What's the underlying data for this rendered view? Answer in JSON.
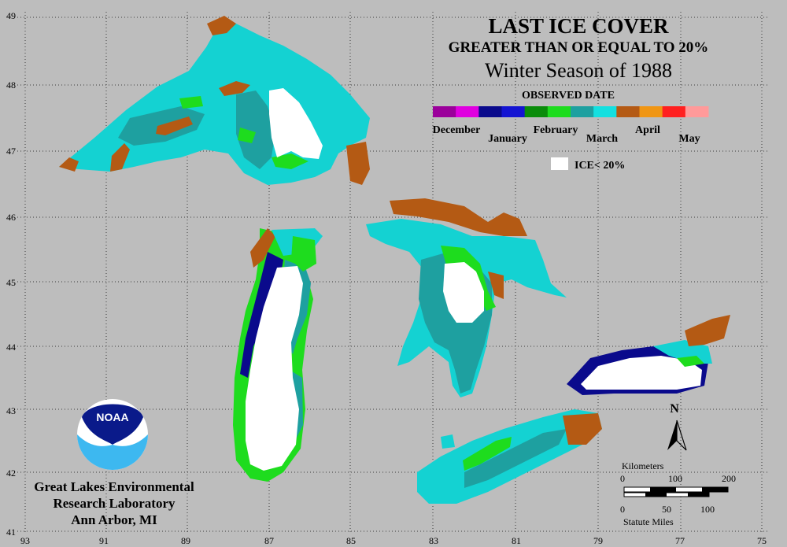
{
  "title": {
    "line1": "LAST ICE COVER",
    "line2": "GREATER THAN OR EQUAL TO 20%",
    "line3": "Winter Season of 1988"
  },
  "legend": {
    "title": "OBSERVED DATE",
    "months": [
      "December",
      "January",
      "February",
      "March",
      "April",
      "May"
    ],
    "swatch_colors": [
      "#9b009b",
      "#e000e0",
      "#0a0a8c",
      "#1414d2",
      "#0a8c0a",
      "#1edc1e",
      "#1ea0a0",
      "#14e0e0",
      "#b45a14",
      "#f09614",
      "#ff2020",
      "#ff9a9a"
    ],
    "ice_label": "ICE< 20%"
  },
  "axes": {
    "lat_labels": [
      "49",
      "48",
      "47",
      "46",
      "45",
      "44",
      "43",
      "42",
      "41"
    ],
    "lon_labels": [
      "93",
      "91",
      "89",
      "87",
      "85",
      "83",
      "81",
      "79",
      "77",
      "75"
    ]
  },
  "scale": {
    "km_title": "Kilometers",
    "km_ticks": [
      "0",
      "100",
      "200"
    ],
    "mi_ticks": [
      "0",
      "50",
      "100"
    ],
    "mi_title": "Statute Miles"
  },
  "north_label": "N",
  "logo_text": "NOAA",
  "lab": {
    "line1": "Great Lakes Environmental",
    "line2": "Research Laboratory",
    "line3": "Ann Arbor, MI"
  },
  "colors": {
    "background": "#bdbdbd",
    "march": "#14d2d2",
    "march_dark": "#1ea0a0",
    "february": "#1edc1e",
    "january": "#0a0a8c",
    "april": "#b45a14",
    "no_ice": "#ffffff"
  }
}
